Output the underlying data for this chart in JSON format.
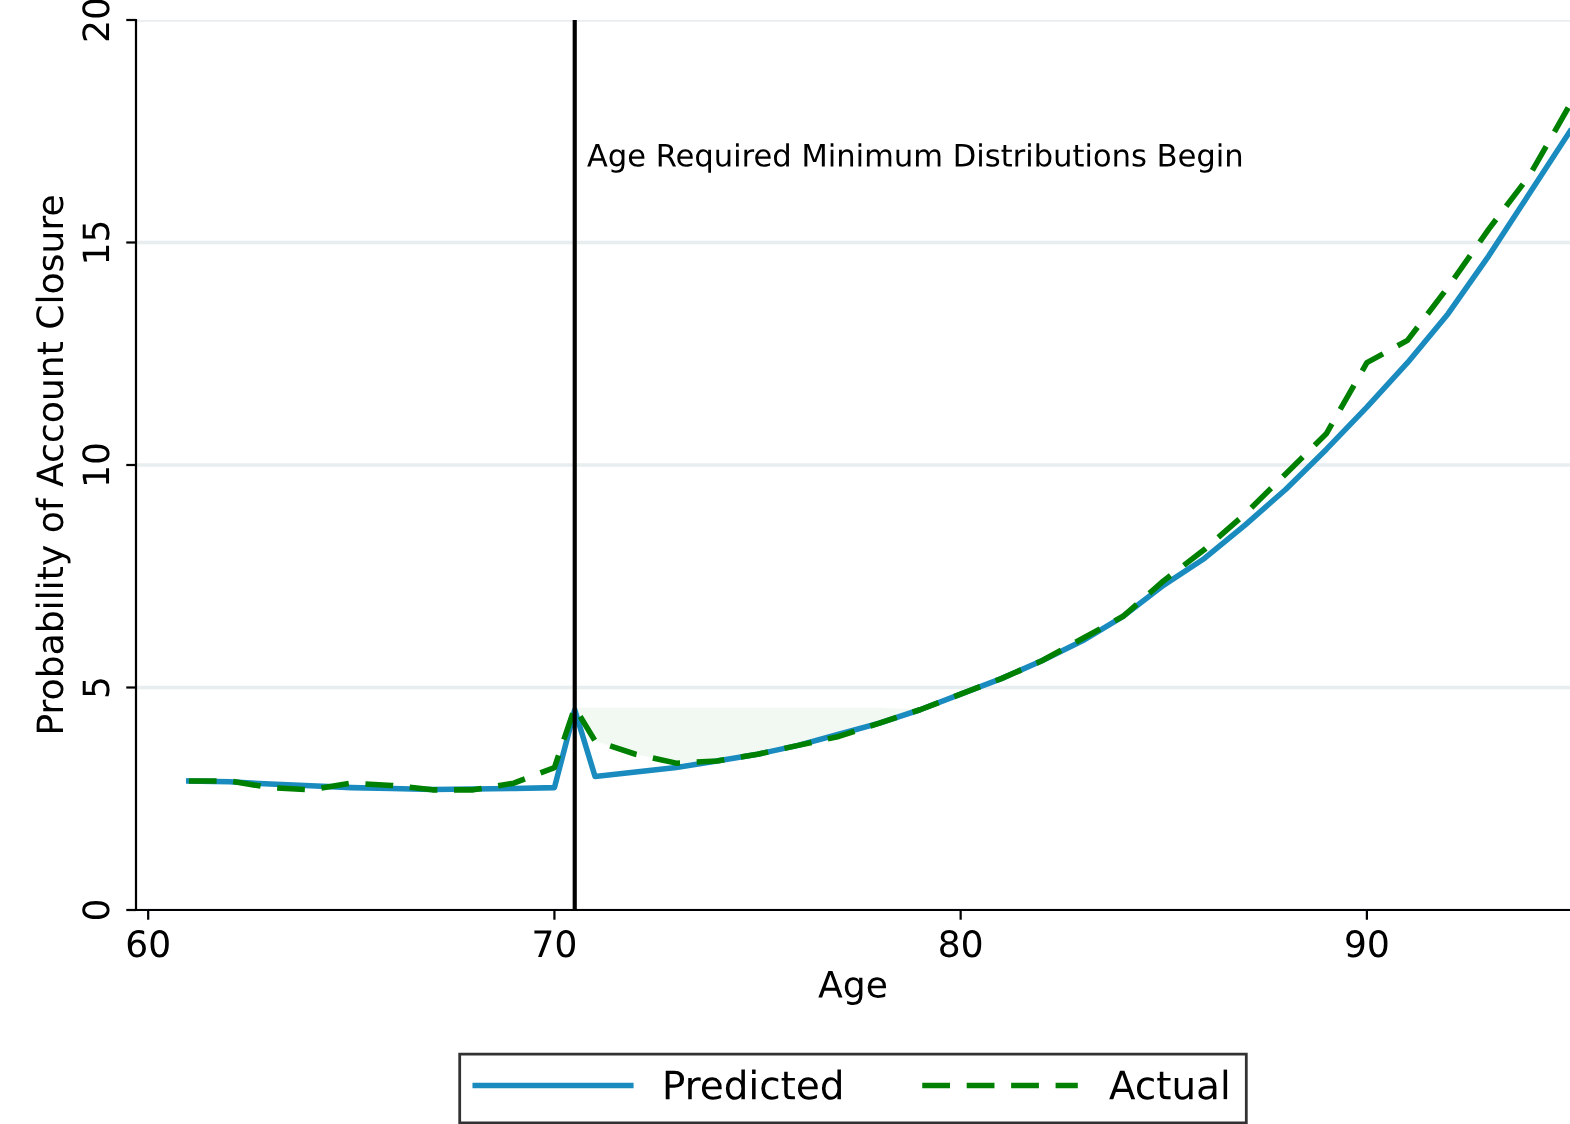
{
  "chart_data": {
    "type": "line",
    "xlabel": "Age",
    "ylabel": "Probability of Account Closure",
    "x": [
      61,
      62,
      63,
      64,
      65,
      66,
      67,
      68,
      69,
      70,
      70.5,
      71,
      72,
      73,
      74,
      75,
      76,
      77,
      78,
      79,
      80,
      81,
      82,
      83,
      84,
      85,
      86,
      87,
      88,
      89,
      90,
      91,
      92,
      93,
      94,
      95
    ],
    "series": [
      {
        "name": "Predicted",
        "color": "#1a8bbf",
        "line_style": "solid",
        "values": [
          2.9,
          2.88,
          2.83,
          2.79,
          2.75,
          2.73,
          2.71,
          2.72,
          2.73,
          2.75,
          4.5,
          3.0,
          3.1,
          3.2,
          3.35,
          3.5,
          3.7,
          3.95,
          4.2,
          4.5,
          4.85,
          5.2,
          5.6,
          6.05,
          6.6,
          7.3,
          7.9,
          8.65,
          9.45,
          10.35,
          11.3,
          12.3,
          13.4,
          14.7,
          16.1,
          17.5
        ]
      },
      {
        "name": "Actual",
        "color": "#008000",
        "line_style": "dashed",
        "values": [
          2.9,
          2.9,
          2.75,
          2.7,
          2.85,
          2.8,
          2.7,
          2.7,
          2.85,
          3.2,
          4.55,
          3.8,
          3.5,
          3.3,
          3.35,
          3.5,
          3.7,
          3.9,
          4.2,
          4.5,
          4.85,
          5.2,
          5.6,
          6.1,
          6.6,
          7.4,
          8.1,
          8.9,
          9.8,
          10.7,
          12.3,
          12.8,
          14.0,
          15.3,
          16.5,
          18.1
        ],
        "lower": [
          null,
          null,
          null,
          null,
          null,
          null,
          null,
          null,
          null,
          null,
          4.55,
          3.8,
          3.5,
          3.3,
          3.35,
          3.5,
          3.7,
          3.9,
          4.2,
          4.5,
          null,
          null,
          null,
          null,
          null,
          null,
          null,
          null,
          null,
          null,
          null,
          null,
          null,
          null,
          null,
          null
        ],
        "upper": [
          null,
          null,
          null,
          null,
          null,
          null,
          null,
          null,
          null,
          null,
          4.55,
          4.55,
          4.55,
          4.55,
          4.55,
          4.55,
          4.55,
          4.55,
          4.55,
          4.5,
          null,
          null,
          null,
          null,
          null,
          null,
          null,
          null,
          null,
          null,
          null,
          null,
          null,
          null,
          null,
          null
        ]
      }
    ],
    "xlim": [
      59.7,
      95
    ],
    "xticks": [
      60,
      70,
      80,
      90
    ],
    "ylim": [
      0,
      20
    ],
    "yticks": [
      0,
      5,
      10,
      15,
      20
    ],
    "grid": "y",
    "legend": "bottom",
    "marker": "none",
    "ref_lines": [
      {
        "axis": "x",
        "value": 70.5,
        "label": "Age Required Minimum Distributions Begin",
        "color": "#000000"
      }
    ]
  }
}
